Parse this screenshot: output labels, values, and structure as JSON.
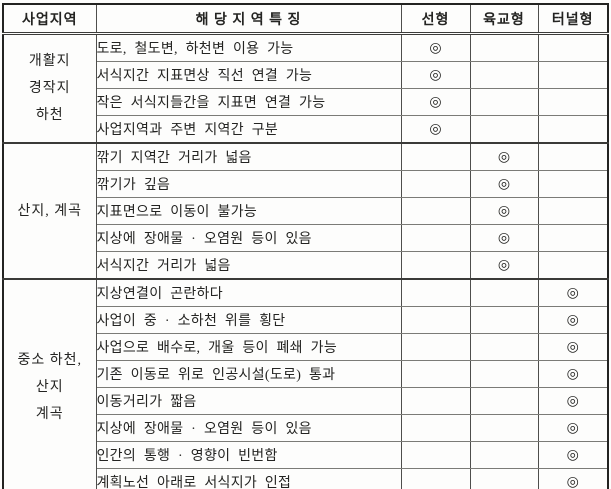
{
  "colors": {
    "paper": "#fdfdfc",
    "ink": "#242422",
    "frame": "#232321",
    "inner_rule": "#7b7b77"
  },
  "table": {
    "columns": [
      "사업지역",
      "해 당 지 역 특 징",
      "선형",
      "육교형",
      "터널형"
    ],
    "mark_symbol": "◎",
    "groups": [
      {
        "region_lines": [
          "개활지",
          "경작지",
          "하천"
        ],
        "rows": [
          {
            "feature": "도로, 철도변, 하천변 이용 가능",
            "marks": [
              "◎",
              "",
              ""
            ]
          },
          {
            "feature": "서식지간 지표면상 직선 연결 가능",
            "marks": [
              "◎",
              "",
              ""
            ]
          },
          {
            "feature": "작은 서식지들간을 지표면 연결 가능",
            "marks": [
              "◎",
              "",
              ""
            ]
          },
          {
            "feature": "사업지역과 주변 지역간 구분",
            "marks": [
              "◎",
              "",
              ""
            ]
          }
        ]
      },
      {
        "region_lines": [
          "산지, 계곡"
        ],
        "rows": [
          {
            "feature": "깎기 지역간 거리가 넓음",
            "marks": [
              "",
              "◎",
              ""
            ]
          },
          {
            "feature": "깎기가 깊음",
            "marks": [
              "",
              "◎",
              ""
            ]
          },
          {
            "feature": "지표면으로 이동이 불가능",
            "marks": [
              "",
              "◎",
              ""
            ]
          },
          {
            "feature": "지상에 장애물 · 오염원 등이 있음",
            "marks": [
              "",
              "◎",
              ""
            ]
          },
          {
            "feature": "서식지간 거리가 넓음",
            "marks": [
              "",
              "◎",
              ""
            ]
          }
        ]
      },
      {
        "region_lines": [
          "중소 하천,",
          "산지",
          "계곡"
        ],
        "rows": [
          {
            "feature": "지상연결이 곤란하다",
            "marks": [
              "",
              "",
              "◎"
            ]
          },
          {
            "feature": "사업이 중 · 소하천 위를 횡단",
            "marks": [
              "",
              "",
              "◎"
            ]
          },
          {
            "feature": "사업으로 배수로, 개울 등이 폐쇄 가능",
            "marks": [
              "",
              "",
              "◎"
            ]
          },
          {
            "feature": "기존 이동로 위로 인공시설(도로) 통과",
            "marks": [
              "",
              "",
              "◎"
            ]
          },
          {
            "feature": "이동거리가 짧음",
            "marks": [
              "",
              "",
              "◎"
            ]
          },
          {
            "feature": "지상에 장애물 · 오염원 등이 있음",
            "marks": [
              "",
              "",
              "◎"
            ]
          },
          {
            "feature": "인간의 통행 · 영향이 빈번함",
            "marks": [
              "",
              "",
              "◎"
            ]
          },
          {
            "feature": "계획노선 아래로 서식지가 인접",
            "marks": [
              "",
              "",
              "◎"
            ]
          }
        ]
      }
    ]
  }
}
